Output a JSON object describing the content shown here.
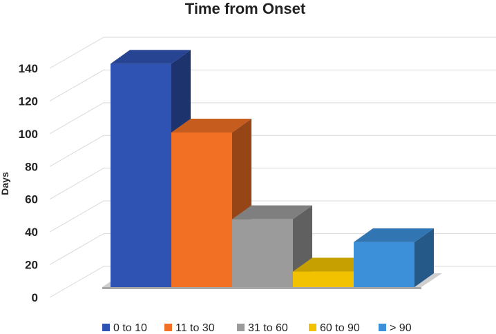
{
  "chart_data": {
    "type": "bar",
    "title": "Time from Onset",
    "xlabel": "",
    "ylabel": "Days",
    "ylim": [
      0,
      140
    ],
    "yticks": [
      0,
      20,
      40,
      60,
      80,
      100,
      120,
      140
    ],
    "grid": true,
    "legend_position": "bottom",
    "style": "3d-columns",
    "categories": [
      "0 to 10",
      "11 to 30",
      "31 to 60",
      "60 to 90",
      "> 90"
    ],
    "values": [
      139,
      97,
      44,
      12,
      30
    ],
    "colors": [
      "#2E53B2",
      "#F27024",
      "#9B9B9B",
      "#F2C200",
      "#3C8FD9"
    ]
  }
}
